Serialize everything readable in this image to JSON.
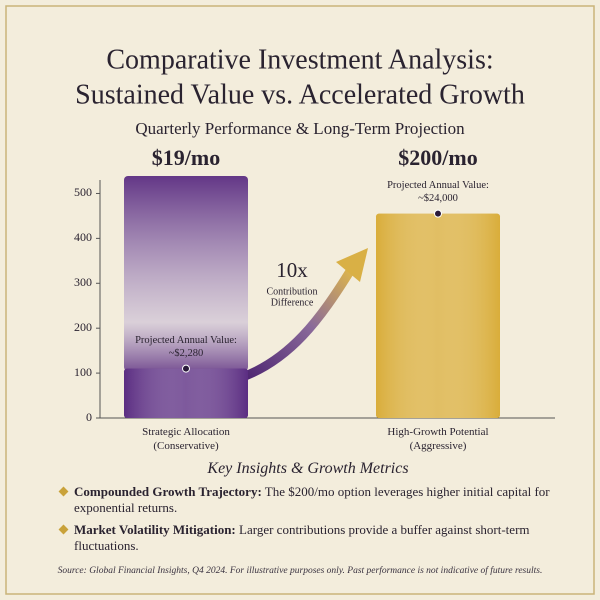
{
  "chart_data": {
    "type": "bar",
    "title": [
      "Comparative Investment Analysis:",
      "Sustained Value vs. Accelerated Growth"
    ],
    "subtitle": "Quarterly Performance & Long-Term Projection",
    "categories": [
      [
        "Strategic Allocation",
        "(Conservative)"
      ],
      [
        "High-Growth Potential",
        "(Aggressive)"
      ]
    ],
    "values": [
      110,
      455
    ],
    "price_labels": [
      "$19/mo",
      "$200/mo"
    ],
    "colors": [
      "#5b2d82",
      "#d9ad3a"
    ],
    "annotations": [
      [
        "Projected Annual Value:",
        "~$2,280"
      ],
      [
        "Projected Annual Value:",
        "~$24,000"
      ]
    ],
    "multiplier": {
      "label": "10x",
      "text": [
        "Contribution",
        "Difference"
      ]
    },
    "ylim": [
      0,
      530
    ],
    "yticks": [
      0,
      100,
      200,
      300,
      400,
      500
    ],
    "grid": false
  },
  "insights": {
    "title": "Key Insights & Growth Metrics",
    "items": [
      {
        "lead": "Compounded Growth Trajectory:",
        "text": "The $200/mo option leverages higher initial capital for exponential returns."
      },
      {
        "lead": "Market Volatility Mitigation:",
        "text": "Larger contributions provide a buffer against short-term fluctuations."
      }
    ]
  },
  "source": "Source: Global Financial Insights, Q4 2024. For illustrative purposes only. Past performance is not indicative of future results."
}
